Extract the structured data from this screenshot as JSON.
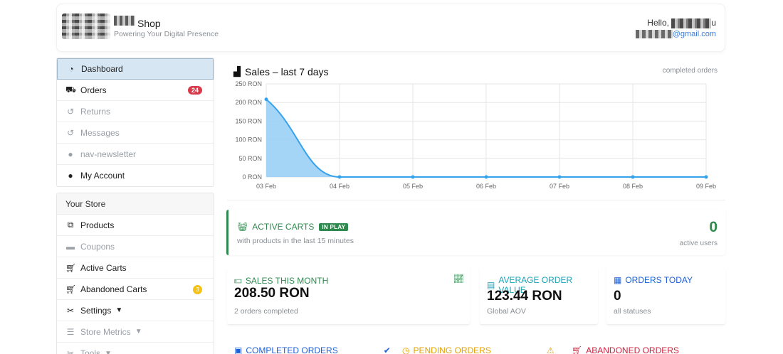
{
  "header": {
    "shop_name": "Shop",
    "tagline": "Powering Your Digital Presence",
    "hello_prefix": "Hello,",
    "hello_suffix": "u",
    "email_suffix": "@gmail.com"
  },
  "sidebar": {
    "main_items": [
      {
        "label": "Dashboard",
        "icon": "dashboard-icon"
      },
      {
        "label": "Orders",
        "icon": "truck-icon",
        "badge": "24"
      },
      {
        "label": "Returns",
        "icon": "undo-icon"
      },
      {
        "label": "Messages",
        "icon": "undo-icon"
      },
      {
        "label": "nav-newsletter",
        "icon": "users-icon"
      },
      {
        "label": "My Account",
        "icon": "user-gear-icon"
      }
    ],
    "store_header": "Your Store",
    "store_items": [
      {
        "label": "Products",
        "icon": "sitemap-icon"
      },
      {
        "label": "Coupons",
        "icon": "ticket-icon"
      },
      {
        "label": "Active Carts",
        "icon": "cart-icon"
      },
      {
        "label": "Abandoned Carts",
        "icon": "cart-icon",
        "badge": "3"
      },
      {
        "label": "Settings",
        "icon": "tools-icon"
      },
      {
        "label": "Store Metrics",
        "icon": "list-icon"
      },
      {
        "label": "Tools",
        "icon": "tools-icon"
      }
    ]
  },
  "chart_card": {
    "title": "Sales – last 7 days",
    "note": "completed orders"
  },
  "chart_data": {
    "type": "area",
    "categories": [
      "03 Feb",
      "04 Feb",
      "05 Feb",
      "06 Feb",
      "07 Feb",
      "08 Feb",
      "09 Feb"
    ],
    "values": [
      208.5,
      0,
      0,
      0,
      0,
      0,
      0
    ],
    "y_ticks": [
      "0 RON",
      "50 RON",
      "100 RON",
      "150 RON",
      "200 RON",
      "250 RON"
    ],
    "ylim": [
      0,
      250
    ],
    "grid": true,
    "line_color": "#36a2eb",
    "fill_color": "#9ad0f5"
  },
  "active_carts": {
    "title": "ACTIVE CARTS",
    "badge": "IN PLAY",
    "subtitle": "with products in the last 15 minutes",
    "count": "0",
    "count_label": "active users"
  },
  "stats": {
    "sales_month": {
      "title": "SALES THIS MONTH",
      "value": "208.50 RON",
      "sub": "2 orders completed"
    },
    "aov": {
      "title": "AVERAGE ORDER VALUE",
      "value": "123.44 RON",
      "sub": "Global AOV"
    },
    "orders_today": {
      "title": "ORDERS TODAY",
      "value": "0",
      "sub": "all statuses"
    }
  },
  "bottom_row": {
    "completed": "COMPLETED ORDERS",
    "pending": "PENDING ORDERS",
    "abandoned": "ABANDONED ORDERS"
  },
  "colors": {
    "green": "#2f8a4e",
    "teal": "#17a2b8",
    "blue": "#1d5fd6",
    "orange": "#e6a100",
    "red": "#c9243f"
  }
}
